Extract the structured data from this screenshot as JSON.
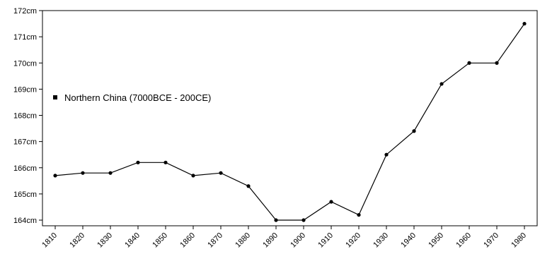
{
  "chart_data": {
    "type": "line",
    "title": "",
    "xlabel": "",
    "ylabel": "",
    "x": [
      1810,
      1820,
      1830,
      1840,
      1850,
      1860,
      1870,
      1880,
      1890,
      1900,
      1910,
      1920,
      1930,
      1940,
      1950,
      1960,
      1970,
      1980
    ],
    "y_ticks": [
      164,
      165,
      166,
      167,
      168,
      169,
      170,
      171,
      172
    ],
    "y_tick_labels": [
      "164cm",
      "165cm",
      "166cm",
      "167cm",
      "168cm",
      "169cm",
      "170cm",
      "171cm",
      "172cm"
    ],
    "x_tick_labels": [
      "1810",
      "1820",
      "1830",
      "1840",
      "1850",
      "1860",
      "1870",
      "1880",
      "1890",
      "1900",
      "1910",
      "1920",
      "1930",
      "1940",
      "1950",
      "1960",
      "1970",
      "1980"
    ],
    "ylim": [
      164,
      172
    ],
    "series": [
      {
        "name": "",
        "color": "#000000",
        "values": [
          165.7,
          165.8,
          165.8,
          166.2,
          166.2,
          165.7,
          165.8,
          165.3,
          164.0,
          164.0,
          164.7,
          164.2,
          166.5,
          167.4,
          169.2,
          170.0,
          170.0,
          171.5
        ]
      }
    ],
    "legend": {
      "label": "Northern China (7000BCE - 200CE)",
      "placement": "middle-left",
      "marker_color": "#000000"
    },
    "grid": false
  }
}
